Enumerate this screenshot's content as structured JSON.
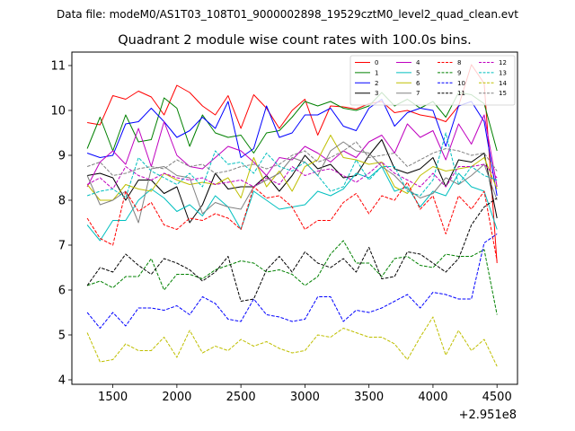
{
  "figure": {
    "suptitle": "Data file: modeM0/AS1T03_108T01_9000002898_19529cztM0_level2_quad_clean.evt",
    "title": "Quadrant 2 module wise count rates with 100.0s bins.",
    "offset_label": "+2.951e8"
  },
  "chart_data": {
    "type": "line",
    "title": "Quadrant 2 module wise count rates with 100.0s bins.",
    "xlabel": "",
    "ylabel": "",
    "x_offset": 295100000,
    "xlim": [
      1180,
      4660
    ],
    "ylim": [
      3.9,
      11.3
    ],
    "xticks": [
      1500,
      2000,
      2500,
      3000,
      3500,
      4000,
      4500
    ],
    "yticks": [
      4,
      5,
      6,
      7,
      8,
      9,
      10,
      11
    ],
    "legend_position": "top-right",
    "x": [
      1300,
      1400,
      1500,
      1600,
      1700,
      1800,
      1900,
      2000,
      2100,
      2200,
      2300,
      2400,
      2500,
      2600,
      2700,
      2800,
      2900,
      3000,
      3100,
      3200,
      3300,
      3400,
      3500,
      3600,
      3700,
      3800,
      3900,
      4000,
      4100,
      4200,
      4300,
      4400,
      4500
    ],
    "series": [
      {
        "name": "0",
        "color": "#ff0000",
        "dash": "solid",
        "values": [
          9.73,
          9.68,
          10.33,
          10.25,
          10.43,
          10.3,
          9.9,
          10.56,
          10.4,
          10.1,
          9.9,
          10.33,
          9.6,
          10.35,
          10.05,
          9.6,
          10.0,
          10.25,
          9.45,
          10.1,
          10.08,
          10.03,
          10.15,
          10.2,
          9.95,
          10.0,
          9.9,
          9.85,
          9.75,
          10.1,
          11.02,
          10.6,
          6.6
        ]
      },
      {
        "name": "1",
        "color": "#008000",
        "dash": "solid",
        "values": [
          9.15,
          9.85,
          9.1,
          9.9,
          9.3,
          9.35,
          10.28,
          10.05,
          9.2,
          9.9,
          9.5,
          9.4,
          9.45,
          9.05,
          9.5,
          9.55,
          9.85,
          10.2,
          10.1,
          10.2,
          10.05,
          10.0,
          10.1,
          10.4,
          10.1,
          10.25,
          10.05,
          10.2,
          9.85,
          10.4,
          10.35,
          10.15,
          9.1
        ]
      },
      {
        "name": "2",
        "color": "#0000ff",
        "dash": "solid",
        "values": [
          9.05,
          8.95,
          9.0,
          9.7,
          9.75,
          10.05,
          9.75,
          9.4,
          9.55,
          9.85,
          9.6,
          10.2,
          8.95,
          9.15,
          10.1,
          9.4,
          9.5,
          9.9,
          9.9,
          10.05,
          9.65,
          9.55,
          10.05,
          10.25,
          9.65,
          9.95,
          10.05,
          10.0,
          9.2,
          10.1,
          10.2,
          9.75,
          8.1
        ]
      },
      {
        "name": "3",
        "color": "#000000",
        "dash": "solid",
        "values": [
          8.55,
          8.6,
          8.5,
          8.0,
          8.45,
          8.45,
          8.15,
          8.3,
          7.5,
          7.9,
          8.6,
          8.25,
          8.3,
          8.3,
          8.55,
          8.2,
          8.55,
          9.0,
          8.7,
          8.8,
          8.5,
          8.55,
          9.0,
          9.35,
          8.7,
          8.6,
          8.7,
          8.95,
          8.3,
          8.9,
          8.85,
          9.05,
          7.6
        ]
      },
      {
        "name": "4",
        "color": "#bf00bf",
        "dash": "solid",
        "values": [
          8.3,
          8.85,
          9.1,
          8.8,
          9.6,
          8.75,
          9.75,
          9.0,
          8.75,
          8.7,
          8.95,
          9.2,
          9.1,
          8.85,
          8.55,
          8.95,
          8.9,
          9.2,
          9.05,
          8.85,
          9.1,
          8.95,
          9.3,
          9.45,
          9.05,
          9.7,
          9.4,
          9.55,
          8.9,
          9.7,
          9.25,
          9.9,
          8.3
        ]
      },
      {
        "name": "5",
        "color": "#00bfbf",
        "dash": "solid",
        "values": [
          7.45,
          7.1,
          7.55,
          7.55,
          8.0,
          8.25,
          8.05,
          7.75,
          7.9,
          7.65,
          8.1,
          7.85,
          7.35,
          8.2,
          8.0,
          7.8,
          7.85,
          7.9,
          8.2,
          8.1,
          8.25,
          8.6,
          8.5,
          8.75,
          8.2,
          8.3,
          7.85,
          8.2,
          8.1,
          8.6,
          8.3,
          8.2,
          7.35
        ]
      },
      {
        "name": "6",
        "color": "#bfbf00",
        "dash": "solid",
        "values": [
          8.35,
          8.0,
          8.0,
          8.35,
          8.25,
          8.2,
          8.6,
          8.45,
          8.35,
          8.4,
          8.35,
          8.5,
          8.05,
          8.95,
          8.3,
          8.65,
          8.2,
          8.75,
          8.9,
          9.45,
          8.95,
          8.9,
          8.8,
          8.85,
          8.3,
          8.15,
          8.55,
          8.75,
          8.65,
          8.7,
          8.75,
          8.95,
          8.25
        ]
      },
      {
        "name": "7",
        "color": "#808080",
        "dash": "solid",
        "values": [
          8.55,
          7.9,
          8.0,
          8.2,
          7.5,
          8.7,
          8.75,
          8.55,
          8.5,
          7.7,
          7.95,
          7.85,
          7.8,
          8.3,
          8.45,
          8.6,
          8.95,
          8.85,
          8.55,
          9.1,
          9.3,
          9.1,
          9.05,
          8.75,
          8.55,
          8.25,
          8.05,
          8.15,
          8.5,
          8.35,
          8.55,
          8.8,
          8.0
        ]
      },
      {
        "name": "8",
        "color": "#ff0000",
        "dash": "dashed",
        "values": [
          7.6,
          7.15,
          7.0,
          8.2,
          7.75,
          7.95,
          7.45,
          7.35,
          7.6,
          7.55,
          7.7,
          7.6,
          7.35,
          8.3,
          8.05,
          8.1,
          7.85,
          7.35,
          7.55,
          7.55,
          7.95,
          8.15,
          7.7,
          8.1,
          8.0,
          8.4,
          7.8,
          8.1,
          7.25,
          8.1,
          7.8,
          8.2,
          6.65
        ]
      },
      {
        "name": "9",
        "color": "#008000",
        "dash": "dashed",
        "values": [
          6.1,
          6.2,
          6.05,
          6.3,
          6.3,
          6.7,
          6.0,
          6.35,
          6.35,
          6.25,
          6.45,
          6.55,
          6.65,
          6.6,
          6.4,
          6.45,
          6.35,
          6.1,
          6.3,
          6.8,
          7.1,
          6.6,
          6.6,
          6.3,
          6.7,
          6.75,
          6.55,
          6.5,
          6.8,
          6.75,
          6.75,
          6.9,
          5.45
        ]
      },
      {
        "name": "10",
        "color": "#0000ff",
        "dash": "dashed",
        "values": [
          5.5,
          5.15,
          5.5,
          5.2,
          5.6,
          5.6,
          5.55,
          5.65,
          5.45,
          5.85,
          5.7,
          5.35,
          5.3,
          5.8,
          5.45,
          5.4,
          5.3,
          5.35,
          5.85,
          5.85,
          5.3,
          5.55,
          5.5,
          5.6,
          5.75,
          5.9,
          5.6,
          5.95,
          5.9,
          5.8,
          5.8,
          7.05,
          7.25
        ]
      },
      {
        "name": "11",
        "color": "#000000",
        "dash": "dashed",
        "values": [
          6.1,
          6.5,
          6.4,
          6.8,
          6.55,
          6.35,
          6.7,
          6.6,
          6.45,
          6.2,
          6.4,
          6.75,
          5.75,
          5.8,
          6.45,
          6.75,
          6.4,
          6.85,
          6.6,
          6.5,
          6.7,
          6.4,
          6.95,
          6.25,
          6.3,
          6.85,
          6.8,
          6.6,
          6.4,
          6.7,
          7.45,
          7.85,
          8.05
        ]
      },
      {
        "name": "12",
        "color": "#bf00bf",
        "dash": "dashed",
        "values": [
          8.35,
          8.5,
          8.25,
          8.75,
          8.55,
          8.45,
          8.6,
          8.5,
          8.45,
          8.5,
          8.35,
          8.4,
          8.45,
          8.3,
          8.5,
          8.35,
          8.75,
          8.55,
          8.65,
          8.7,
          8.55,
          8.4,
          8.6,
          8.85,
          8.6,
          8.45,
          8.3,
          8.6,
          8.3,
          8.75,
          8.75,
          8.8,
          8.5
        ]
      },
      {
        "name": "13",
        "color": "#00bfbf",
        "dash": "dashed",
        "values": [
          8.1,
          8.2,
          8.25,
          8.05,
          8.95,
          8.65,
          8.5,
          8.35,
          8.6,
          8.3,
          9.1,
          8.8,
          8.85,
          8.6,
          9.05,
          8.75,
          8.65,
          8.85,
          8.55,
          8.2,
          8.3,
          8.9,
          8.45,
          8.75,
          8.75,
          8.2,
          8.1,
          8.45,
          9.5,
          8.35,
          8.75,
          8.55,
          8.45
        ]
      },
      {
        "name": "14",
        "color": "#bfbf00",
        "dash": "dashed",
        "values": [
          5.05,
          4.4,
          4.45,
          4.8,
          4.65,
          4.65,
          4.95,
          4.5,
          5.1,
          4.6,
          4.75,
          4.65,
          4.9,
          4.75,
          4.85,
          4.7,
          4.6,
          4.65,
          5.0,
          4.95,
          5.15,
          5.05,
          4.95,
          4.95,
          4.8,
          4.45,
          4.95,
          5.4,
          4.55,
          5.1,
          4.65,
          4.9,
          4.3
        ]
      },
      {
        "name": "15",
        "color": "#808080",
        "dash": "dashed",
        "values": [
          8.75,
          8.85,
          8.55,
          8.6,
          8.7,
          8.75,
          8.7,
          8.9,
          8.75,
          8.8,
          8.6,
          8.65,
          8.75,
          8.8,
          8.7,
          8.8,
          9.0,
          9.1,
          8.85,
          8.95,
          9.1,
          9.3,
          8.95,
          9.0,
          9.05,
          8.75,
          8.9,
          9.05,
          9.15,
          9.1,
          9.0,
          9.05,
          8.65
        ]
      }
    ]
  }
}
